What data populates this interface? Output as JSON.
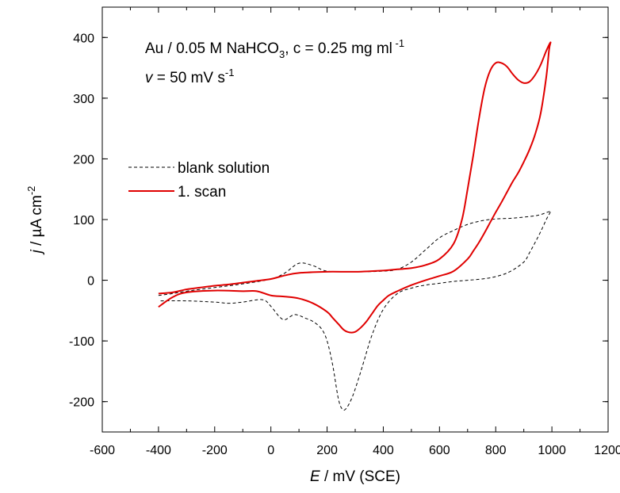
{
  "chart_data": {
    "type": "line",
    "xlabel": {
      "var": "E",
      "rest": " / mV (SCE)"
    },
    "ylabel": {
      "var": "j",
      "rest": " / µA cm",
      "sup": "-2"
    },
    "xlim": [
      -600,
      1200
    ],
    "ylim": [
      -250,
      450
    ],
    "xticks": [
      -600,
      -400,
      -200,
      0,
      200,
      400,
      600,
      800,
      1000,
      1200
    ],
    "yticks": [
      -200,
      -100,
      0,
      100,
      200,
      300,
      400
    ],
    "grid": false,
    "legend_position": "center-left",
    "annotation": {
      "line1": {
        "a": "Au / 0.05 M NaHCO",
        "sub": "3",
        "b": ", c = 0.25 mg ml",
        "sup": " -1"
      },
      "line2": {
        "var": "v",
        "b": " = 50 mV s",
        "sup": "-1"
      }
    },
    "series": [
      {
        "name": "blank solution",
        "color": "#000000",
        "style": "dashed",
        "x": [
          -400,
          -350,
          -300,
          -200,
          -100,
          0,
          50,
          100,
          150,
          200,
          300,
          400,
          450,
          500,
          550,
          600,
          650,
          700,
          750,
          800,
          850,
          900,
          950,
          990,
          995,
          980,
          960,
          940,
          920,
          900,
          850,
          800,
          750,
          700,
          650,
          600,
          550,
          500,
          450,
          400,
          360,
          330,
          310,
          290,
          270,
          255,
          240,
          220,
          200,
          180,
          150,
          120,
          100,
          80,
          50,
          30,
          0,
          -30,
          -100,
          -150,
          -200,
          -300,
          -400
        ],
        "y": [
          -25,
          -22,
          -18,
          -12,
          -6,
          2,
          12,
          28,
          24,
          15,
          14,
          15,
          18,
          30,
          50,
          70,
          82,
          92,
          98,
          101,
          102,
          104,
          107,
          113,
          113,
          100,
          80,
          62,
          45,
          30,
          14,
          6,
          2,
          0,
          -2,
          -5,
          -8,
          -13,
          -22,
          -48,
          -90,
          -135,
          -165,
          -192,
          -210,
          -213,
          -195,
          -140,
          -100,
          -80,
          -68,
          -62,
          -58,
          -57,
          -65,
          -60,
          -43,
          -32,
          -36,
          -38,
          -36,
          -34,
          -34
        ]
      },
      {
        "name": "1. scan",
        "color": "#e00000",
        "style": "solid",
        "x": [
          -400,
          -350,
          -300,
          -250,
          -200,
          -150,
          -100,
          -50,
          0,
          50,
          100,
          200,
          300,
          400,
          450,
          500,
          550,
          600,
          650,
          680,
          700,
          720,
          740,
          760,
          780,
          800,
          820,
          840,
          860,
          880,
          900,
          920,
          940,
          960,
          980,
          995,
          990,
          980,
          960,
          940,
          920,
          900,
          880,
          860,
          840,
          820,
          800,
          780,
          760,
          740,
          720,
          700,
          650,
          600,
          550,
          500,
          450,
          420,
          400,
          380,
          360,
          340,
          320,
          300,
          280,
          260,
          240,
          220,
          200,
          150,
          100,
          50,
          0,
          -50,
          -100,
          -200,
          -300,
          -350,
          -400
        ],
        "y": [
          -22,
          -20,
          -15,
          -12,
          -9,
          -7,
          -4,
          -1,
          2,
          8,
          12,
          14,
          14,
          16,
          18,
          20,
          25,
          35,
          60,
          100,
          150,
          205,
          265,
          315,
          345,
          358,
          358,
          352,
          340,
          330,
          325,
          327,
          338,
          355,
          378,
          392,
          380,
          335,
          275,
          240,
          215,
          195,
          177,
          162,
          145,
          128,
          112,
          95,
          78,
          62,
          48,
          35,
          15,
          7,
          0,
          -8,
          -18,
          -25,
          -33,
          -42,
          -55,
          -68,
          -78,
          -85,
          -86,
          -82,
          -72,
          -62,
          -52,
          -38,
          -30,
          -27,
          -25,
          -18,
          -18,
          -17,
          -20,
          -28,
          -44
        ]
      }
    ]
  }
}
